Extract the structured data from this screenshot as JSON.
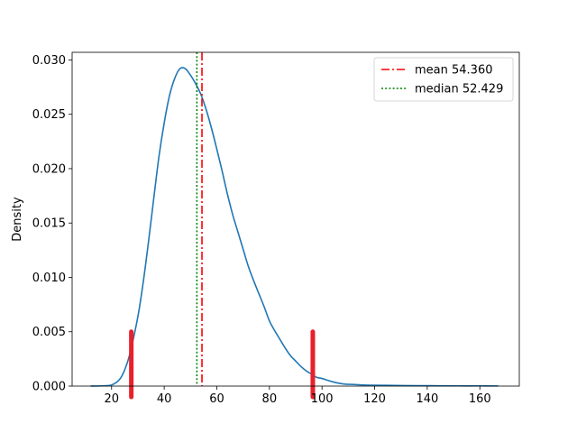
{
  "chart_data": {
    "type": "line",
    "title": "",
    "xlabel": "",
    "ylabel": "Density",
    "xlim": [
      5,
      175
    ],
    "ylim": [
      0,
      0.0307
    ],
    "grid": false,
    "legend_position": "top-right",
    "x_ticks": [
      20,
      40,
      60,
      80,
      100,
      120,
      140,
      160
    ],
    "y_ticks": [
      0.0,
      0.005,
      0.01,
      0.015,
      0.02,
      0.025,
      0.03
    ],
    "x_tick_labels": [
      "20",
      "40",
      "60",
      "80",
      "100",
      "120",
      "140",
      "160"
    ],
    "y_tick_labels": [
      "0.000",
      "0.005",
      "0.010",
      "0.015",
      "0.020",
      "0.025",
      "0.030"
    ],
    "series": [
      {
        "type": "kde",
        "color": "#1f77b4",
        "x": [
          12,
          16,
          20,
          23,
          25,
          27,
          30,
          32,
          34,
          36,
          38,
          40,
          42,
          44,
          46,
          48,
          50,
          52,
          54,
          56,
          58,
          60,
          62,
          64,
          66,
          68,
          70,
          72,
          74,
          76,
          78,
          80,
          82,
          84,
          86,
          88,
          90,
          92,
          94,
          96,
          98,
          100,
          104,
          108,
          112,
          116,
          120,
          128,
          136,
          144,
          152,
          160,
          167
        ],
        "y": [
          0.0,
          2e-05,
          0.0001,
          0.0006,
          0.0015,
          0.003,
          0.0064,
          0.0095,
          0.0132,
          0.0172,
          0.0211,
          0.0242,
          0.0267,
          0.0283,
          0.0292,
          0.0292,
          0.0286,
          0.0278,
          0.0268,
          0.0254,
          0.0237,
          0.0218,
          0.0198,
          0.0177,
          0.0158,
          0.0142,
          0.0126,
          0.011,
          0.0097,
          0.0085,
          0.0073,
          0.006,
          0.0051,
          0.0043,
          0.0035,
          0.0028,
          0.0023,
          0.0018,
          0.0014,
          0.0011,
          0.0008,
          0.0007,
          0.0004,
          0.0002,
          0.00015,
          0.0001,
          8e-05,
          6e-05,
          4e-05,
          3e-05,
          2e-05,
          2e-05,
          1e-05
        ]
      }
    ],
    "vlines": [
      {
        "name": "mean 54.360",
        "x": 54.36,
        "color": "#ff0000",
        "style": "dashdot"
      },
      {
        "name": "median 52.429",
        "x": 52.429,
        "color": "#008000",
        "style": "dotted"
      }
    ],
    "markers": [
      {
        "x": 27.5,
        "y0": -0.001,
        "y1": 0.005,
        "color": "#e8202a"
      },
      {
        "x": 96.5,
        "y0": -0.001,
        "y1": 0.005,
        "color": "#e8202a"
      }
    ]
  }
}
